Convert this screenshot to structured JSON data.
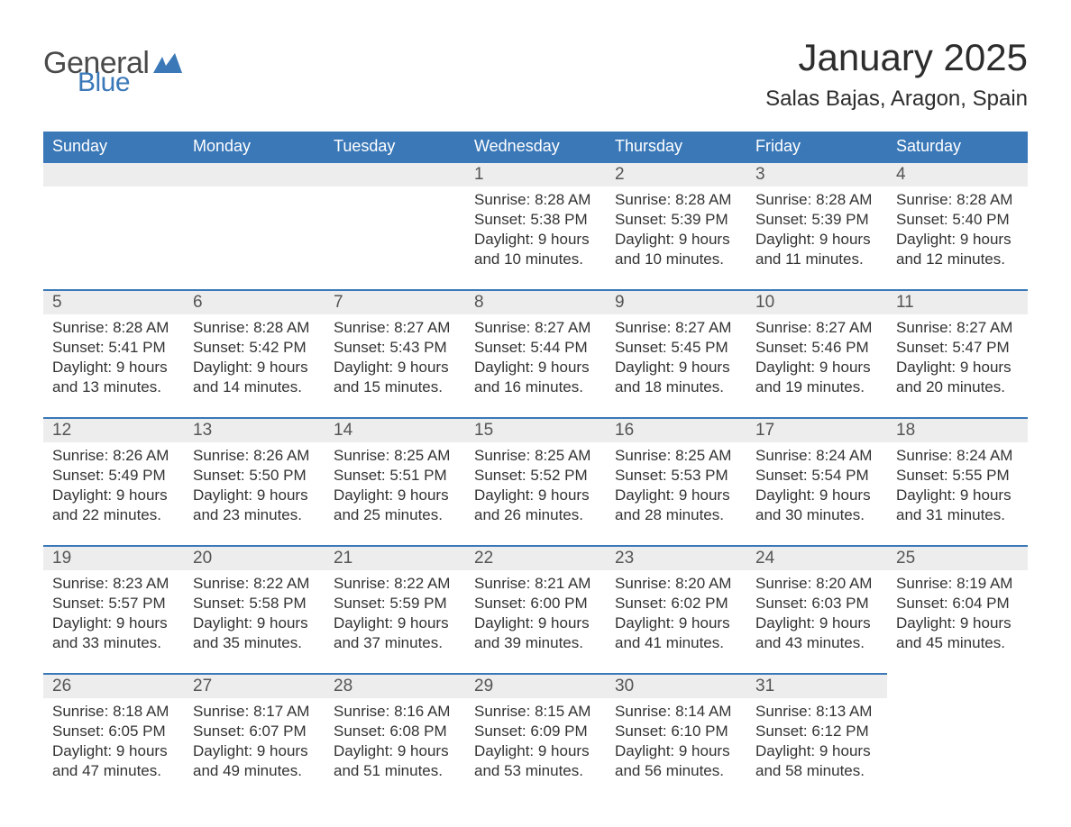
{
  "logo": {
    "text_general": "General",
    "text_blue": "Blue",
    "icon_color": "#3a78b8",
    "general_color": "#4a4a4a"
  },
  "header": {
    "title": "January 2025",
    "location": "Salas Bajas, Aragon, Spain"
  },
  "colors": {
    "header_bg": "#3a78b8",
    "header_text": "#ffffff",
    "daynum_bg": "#ededed",
    "daynum_border": "#3a78b8",
    "body_text": "#333333",
    "page_bg": "#ffffff"
  },
  "layout": {
    "columns": 7,
    "rows": 5,
    "first_day_column_index": 3
  },
  "weekdays": [
    "Sunday",
    "Monday",
    "Tuesday",
    "Wednesday",
    "Thursday",
    "Friday",
    "Saturday"
  ],
  "days": [
    {
      "n": "1",
      "sunrise": "8:28 AM",
      "sunset": "5:38 PM",
      "daylight": "9 hours and 10 minutes."
    },
    {
      "n": "2",
      "sunrise": "8:28 AM",
      "sunset": "5:39 PM",
      "daylight": "9 hours and 10 minutes."
    },
    {
      "n": "3",
      "sunrise": "8:28 AM",
      "sunset": "5:39 PM",
      "daylight": "9 hours and 11 minutes."
    },
    {
      "n": "4",
      "sunrise": "8:28 AM",
      "sunset": "5:40 PM",
      "daylight": "9 hours and 12 minutes."
    },
    {
      "n": "5",
      "sunrise": "8:28 AM",
      "sunset": "5:41 PM",
      "daylight": "9 hours and 13 minutes."
    },
    {
      "n": "6",
      "sunrise": "8:28 AM",
      "sunset": "5:42 PM",
      "daylight": "9 hours and 14 minutes."
    },
    {
      "n": "7",
      "sunrise": "8:27 AM",
      "sunset": "5:43 PM",
      "daylight": "9 hours and 15 minutes."
    },
    {
      "n": "8",
      "sunrise": "8:27 AM",
      "sunset": "5:44 PM",
      "daylight": "9 hours and 16 minutes."
    },
    {
      "n": "9",
      "sunrise": "8:27 AM",
      "sunset": "5:45 PM",
      "daylight": "9 hours and 18 minutes."
    },
    {
      "n": "10",
      "sunrise": "8:27 AM",
      "sunset": "5:46 PM",
      "daylight": "9 hours and 19 minutes."
    },
    {
      "n": "11",
      "sunrise": "8:27 AM",
      "sunset": "5:47 PM",
      "daylight": "9 hours and 20 minutes."
    },
    {
      "n": "12",
      "sunrise": "8:26 AM",
      "sunset": "5:49 PM",
      "daylight": "9 hours and 22 minutes."
    },
    {
      "n": "13",
      "sunrise": "8:26 AM",
      "sunset": "5:50 PM",
      "daylight": "9 hours and 23 minutes."
    },
    {
      "n": "14",
      "sunrise": "8:25 AM",
      "sunset": "5:51 PM",
      "daylight": "9 hours and 25 minutes."
    },
    {
      "n": "15",
      "sunrise": "8:25 AM",
      "sunset": "5:52 PM",
      "daylight": "9 hours and 26 minutes."
    },
    {
      "n": "16",
      "sunrise": "8:25 AM",
      "sunset": "5:53 PM",
      "daylight": "9 hours and 28 minutes."
    },
    {
      "n": "17",
      "sunrise": "8:24 AM",
      "sunset": "5:54 PM",
      "daylight": "9 hours and 30 minutes."
    },
    {
      "n": "18",
      "sunrise": "8:24 AM",
      "sunset": "5:55 PM",
      "daylight": "9 hours and 31 minutes."
    },
    {
      "n": "19",
      "sunrise": "8:23 AM",
      "sunset": "5:57 PM",
      "daylight": "9 hours and 33 minutes."
    },
    {
      "n": "20",
      "sunrise": "8:22 AM",
      "sunset": "5:58 PM",
      "daylight": "9 hours and 35 minutes."
    },
    {
      "n": "21",
      "sunrise": "8:22 AM",
      "sunset": "5:59 PM",
      "daylight": "9 hours and 37 minutes."
    },
    {
      "n": "22",
      "sunrise": "8:21 AM",
      "sunset": "6:00 PM",
      "daylight": "9 hours and 39 minutes."
    },
    {
      "n": "23",
      "sunrise": "8:20 AM",
      "sunset": "6:02 PM",
      "daylight": "9 hours and 41 minutes."
    },
    {
      "n": "24",
      "sunrise": "8:20 AM",
      "sunset": "6:03 PM",
      "daylight": "9 hours and 43 minutes."
    },
    {
      "n": "25",
      "sunrise": "8:19 AM",
      "sunset": "6:04 PM",
      "daylight": "9 hours and 45 minutes."
    },
    {
      "n": "26",
      "sunrise": "8:18 AM",
      "sunset": "6:05 PM",
      "daylight": "9 hours and 47 minutes."
    },
    {
      "n": "27",
      "sunrise": "8:17 AM",
      "sunset": "6:07 PM",
      "daylight": "9 hours and 49 minutes."
    },
    {
      "n": "28",
      "sunrise": "8:16 AM",
      "sunset": "6:08 PM",
      "daylight": "9 hours and 51 minutes."
    },
    {
      "n": "29",
      "sunrise": "8:15 AM",
      "sunset": "6:09 PM",
      "daylight": "9 hours and 53 minutes."
    },
    {
      "n": "30",
      "sunrise": "8:14 AM",
      "sunset": "6:10 PM",
      "daylight": "9 hours and 56 minutes."
    },
    {
      "n": "31",
      "sunrise": "8:13 AM",
      "sunset": "6:12 PM",
      "daylight": "9 hours and 58 minutes."
    }
  ],
  "labels": {
    "sunrise": "Sunrise:",
    "sunset": "Sunset:",
    "daylight": "Daylight:"
  }
}
